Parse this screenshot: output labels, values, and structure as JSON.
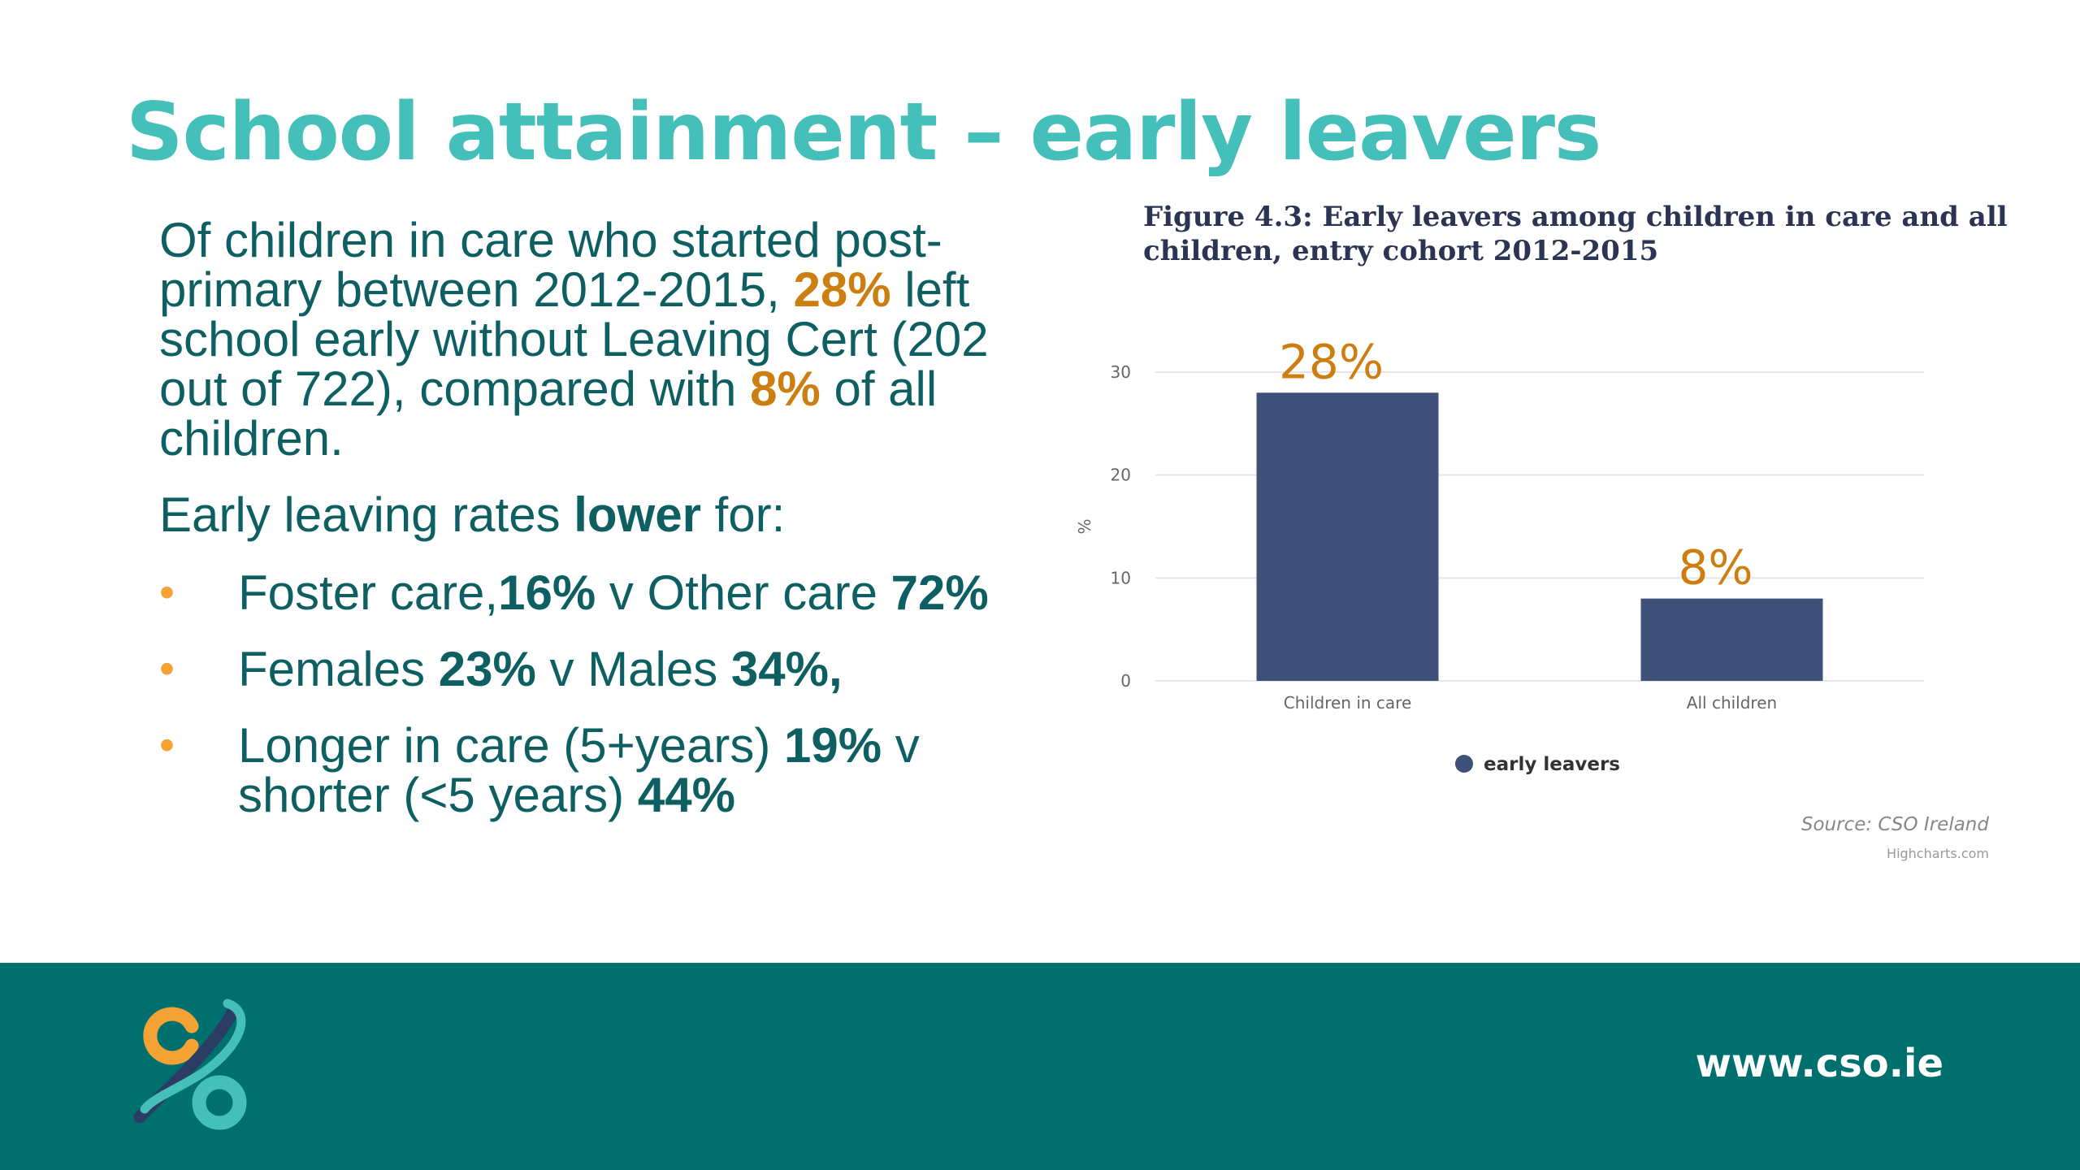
{
  "slide": {
    "title": "School attainment – early leavers"
  },
  "text": {
    "p1_a": "Of children in care who started post-primary between 2012-2015, ",
    "p1_b": "28%",
    "p1_c": " left school early without Leaving Cert (202 out of 722), compared with ",
    "p1_d": "8%",
    "p1_e": " of all children.",
    "p2_a": "Early leaving rates ",
    "p2_b": "lower",
    "p2_c": " for:",
    "bullets": [
      {
        "a": "Foster care,",
        "b": "16%",
        "c": " v Other care ",
        "d": "72%"
      },
      {
        "a": "Females ",
        "b": "23%",
        "c": " v Males ",
        "d": "34%,"
      },
      {
        "a": " Longer in care (5+years) ",
        "b": "19%",
        "c": " v shorter (<5 years) ",
        "d": "44%"
      }
    ]
  },
  "chart_data": {
    "type": "bar",
    "title": "Figure 4.3: Early leavers among children in care and all children, entry cohort 2012-2015",
    "categories": [
      "Children in care",
      "All children"
    ],
    "series": [
      {
        "name": "early leavers",
        "values": [
          28,
          8
        ]
      }
    ],
    "data_labels": [
      "28%",
      "8%"
    ],
    "ylabel": "%",
    "ylim": [
      0,
      30
    ],
    "yticks": [
      0,
      10,
      20,
      30
    ],
    "grid": true,
    "legend": "bottom-center",
    "credits": "Source: CSO Ireland",
    "credits_sub": "Highcharts.com",
    "colors": {
      "bar": "#3f5079",
      "label": "#cc7f10",
      "grid": "#e6e6e6",
      "axis_text": "#666666"
    }
  },
  "footer": {
    "url": "www.cso.ie",
    "logo_icon": "cso-logo-icon",
    "colors": {
      "background": "#00706e",
      "logo_orange": "#f3a233",
      "logo_teal": "#45bfb9",
      "logo_navy": "#2b3d64"
    }
  }
}
